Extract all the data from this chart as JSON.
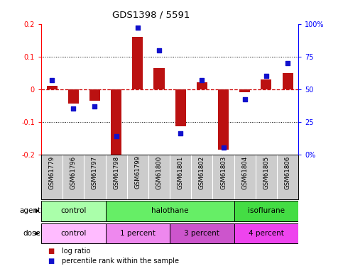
{
  "title": "GDS1398 / 5591",
  "samples": [
    "GSM61779",
    "GSM61796",
    "GSM61797",
    "GSM61798",
    "GSM61799",
    "GSM61800",
    "GSM61801",
    "GSM61802",
    "GSM61803",
    "GSM61804",
    "GSM61805",
    "GSM61806"
  ],
  "log_ratio": [
    0.01,
    -0.045,
    -0.035,
    -0.205,
    0.16,
    0.065,
    -0.115,
    0.02,
    -0.185,
    -0.01,
    0.03,
    0.05
  ],
  "percentile_rank": [
    57,
    35,
    37,
    14,
    97,
    80,
    16,
    57,
    5,
    42,
    60,
    70
  ],
  "ylim": [
    -0.2,
    0.2
  ],
  "yticks_left": [
    -0.2,
    -0.1,
    0.0,
    0.1,
    0.2
  ],
  "ytick_labels_left": [
    "-0.2",
    "-0.1",
    "0",
    "0.1",
    "0.2"
  ],
  "yticks_right": [
    0,
    25,
    50,
    75,
    100
  ],
  "ytick_labels_right": [
    "0%",
    "25",
    "50",
    "75",
    "100%"
  ],
  "bar_color": "#bb1111",
  "dot_color": "#1111cc",
  "agent_groups": [
    {
      "label": "control",
      "start": 0,
      "end": 3,
      "color": "#aaffaa"
    },
    {
      "label": "halothane",
      "start": 3,
      "end": 9,
      "color": "#66ee66"
    },
    {
      "label": "isoflurane",
      "start": 9,
      "end": 12,
      "color": "#44dd44"
    }
  ],
  "dose_groups": [
    {
      "label": "control",
      "start": 0,
      "end": 3,
      "color": "#ffbbff"
    },
    {
      "label": "1 percent",
      "start": 3,
      "end": 6,
      "color": "#ee88ee"
    },
    {
      "label": "3 percent",
      "start": 6,
      "end": 9,
      "color": "#cc55cc"
    },
    {
      "label": "4 percent",
      "start": 9,
      "end": 12,
      "color": "#ee44ee"
    }
  ],
  "legend_items": [
    {
      "label": "log ratio",
      "color": "#bb1111"
    },
    {
      "label": "percentile rank within the sample",
      "color": "#1111cc"
    }
  ],
  "bg_color_plot": "#ffffff",
  "bg_color_samples": "#cccccc",
  "hline_color": "#cc0000",
  "dot_hline_color": "#cc0000"
}
